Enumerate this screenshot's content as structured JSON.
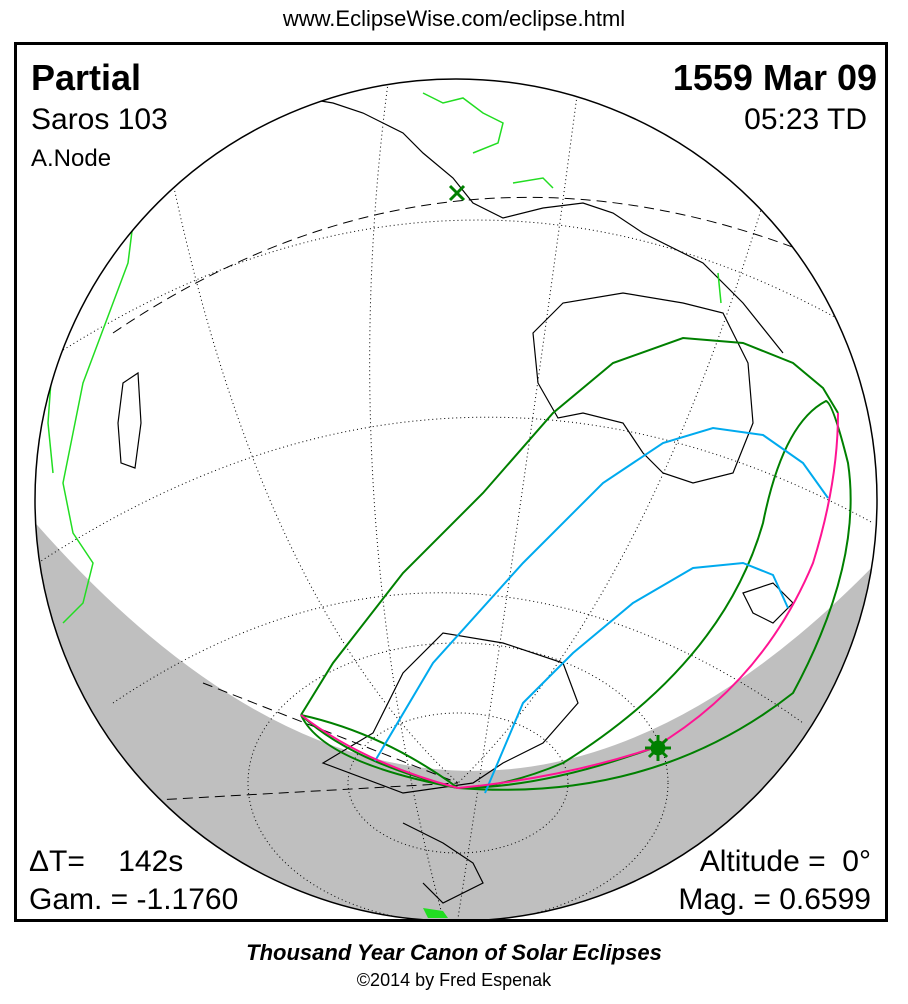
{
  "url": "www.EclipseWise.com/eclipse.html",
  "eclipse": {
    "type": "Partial",
    "date": "1559 Mar 09",
    "saros": "Saros 103",
    "time": "05:23 TD",
    "node": "A.Node",
    "delta_t": "ΔT=    142s",
    "gamma": "Gam. = -1.1760",
    "altitude": "Altitude =  0°",
    "magnitude": "Mag. = 0.6599"
  },
  "footer": {
    "title": "Thousand Year Canon of Solar Eclipses",
    "copyright": "©2014 by Fred Espenak"
  },
  "colors": {
    "night": "#bfbfbf",
    "eclipse_limits": "#008000",
    "magnitude_curves": "#00aaee",
    "horizon_curve": "#ff1493",
    "borders": "#22dd22"
  }
}
